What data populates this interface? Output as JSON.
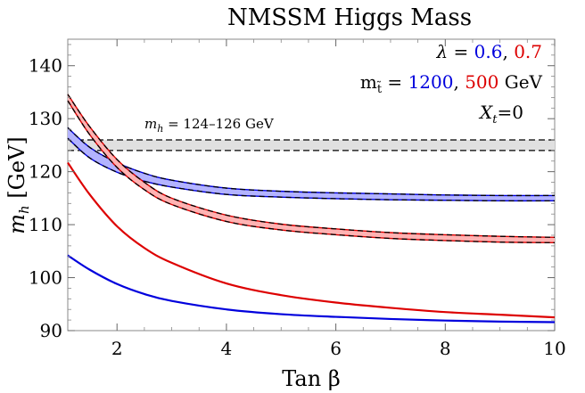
{
  "chart_data": {
    "type": "line",
    "title": "NMSSM Higgs Mass",
    "xlabel": "Tan β",
    "ylabel": "m_h [GeV]",
    "xlim": [
      1.1,
      10
    ],
    "ylim": [
      90,
      145
    ],
    "xticks": [
      2,
      4,
      6,
      8,
      10
    ],
    "yticks": [
      90,
      100,
      110,
      120,
      130,
      140
    ],
    "legend": {
      "lambda_prefix": "λ = ",
      "lambda_blue": "0.6",
      "lambda_sep": ", ",
      "lambda_red": "0.7",
      "mstop_prefix": "m",
      "mstop_sub": "t̃",
      "mstop_eq": " = ",
      "mstop_blue": "1200",
      "mstop_sep": ", ",
      "mstop_red": "500",
      "mstop_unit": " GeV",
      "xt_label": "X",
      "xt_sub": "t",
      "xt_value": "=0"
    },
    "reference_band": {
      "label_m": "m",
      "label_sub": "h",
      "label_text": " = 124–126 GeV",
      "lower": 124,
      "upper": 126,
      "fill": "#e0e0e0"
    },
    "series": [
      {
        "name": "blue-band",
        "color": "#0000dd",
        "fill": "#b3b3ff",
        "x": [
          1.1,
          1.5,
          2,
          2.5,
          3,
          4,
          5,
          6,
          7,
          8,
          9,
          10
        ],
        "upper": [
          128.3,
          124.6,
          121.7,
          119.7,
          118.4,
          116.9,
          116.3,
          116.0,
          115.8,
          115.6,
          115.5,
          115.5
        ],
        "lower": [
          126.3,
          122.6,
          119.9,
          118.2,
          117.1,
          115.7,
          115.2,
          114.9,
          114.7,
          114.6,
          114.5,
          114.5
        ]
      },
      {
        "name": "red-band",
        "color": "#dd0000",
        "fill": "#ffb3b3",
        "x": [
          1.1,
          1.5,
          2,
          2.5,
          3,
          4,
          5,
          6,
          7,
          8,
          9,
          10
        ],
        "upper": [
          134.6,
          128.5,
          122.3,
          118.0,
          115.0,
          111.8,
          110.1,
          109.2,
          108.5,
          108.1,
          107.8,
          107.6
        ],
        "lower": [
          133.4,
          127.0,
          120.8,
          116.6,
          113.8,
          110.6,
          109.0,
          108.1,
          107.4,
          107.0,
          106.7,
          106.6
        ]
      },
      {
        "name": "red-line",
        "color": "#dd0000",
        "x": [
          1.1,
          1.5,
          2,
          2.5,
          3,
          4,
          5,
          6,
          7,
          8,
          9,
          10
        ],
        "values": [
          121.7,
          115.7,
          109.7,
          105.6,
          102.8,
          98.9,
          96.7,
          95.3,
          94.3,
          93.5,
          93.0,
          92.5
        ]
      },
      {
        "name": "blue-line",
        "color": "#0000dd",
        "x": [
          1.1,
          1.5,
          2,
          2.5,
          3,
          4,
          5,
          6,
          7,
          8,
          9,
          10
        ],
        "values": [
          104.2,
          101.5,
          98.8,
          96.9,
          95.6,
          94.0,
          93.1,
          92.6,
          92.2,
          91.9,
          91.7,
          91.6
        ]
      }
    ]
  }
}
